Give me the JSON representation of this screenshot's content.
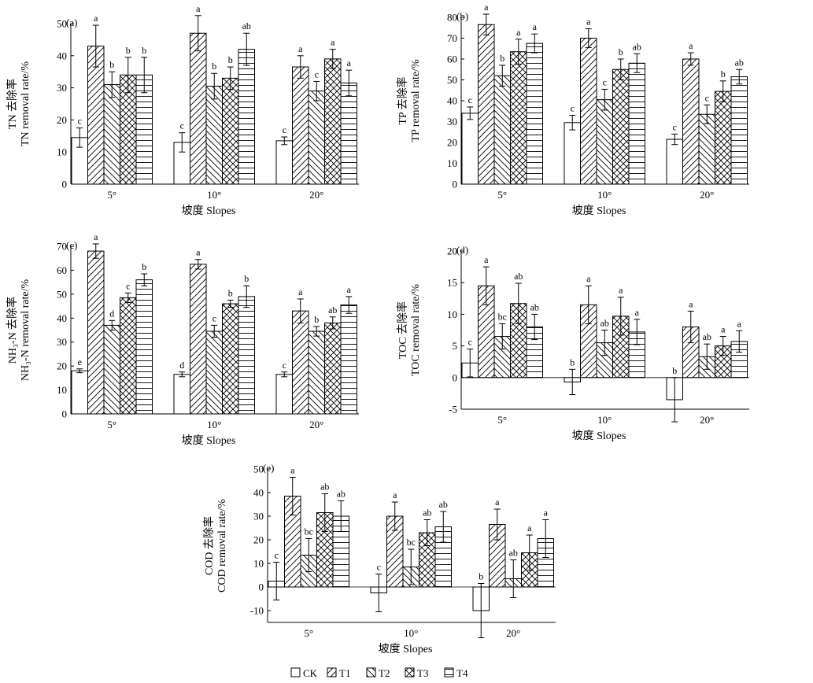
{
  "legend": [
    {
      "key": "CK",
      "pattern": "none"
    },
    {
      "key": "T1",
      "pattern": "forward"
    },
    {
      "key": "T2",
      "pattern": "back"
    },
    {
      "key": "T3",
      "pattern": "cross"
    },
    {
      "key": "T4",
      "pattern": "horizontal"
    }
  ],
  "chart_data": [
    {
      "type": "bar",
      "tag": "(a)",
      "ylabel_cn": "TN 去除率",
      "ylabel_en": "TN removal rate/%",
      "xlabel": "坡度 Slopes",
      "categories": [
        "5°",
        "10°",
        "20°"
      ],
      "ylim": [
        0,
        50
      ],
      "yticks": [
        0,
        10,
        20,
        30,
        40,
        50
      ],
      "series": [
        {
          "name": "CK",
          "values": [
            14.5,
            13,
            13.5
          ],
          "err": [
            3,
            3,
            1.2
          ],
          "letters": [
            "c",
            "c",
            "c"
          ]
        },
        {
          "name": "T1",
          "values": [
            43,
            47,
            36.5
          ],
          "err": [
            6.5,
            5.5,
            3.5
          ],
          "letters": [
            "a",
            "a",
            "a"
          ]
        },
        {
          "name": "T2",
          "values": [
            31,
            30.5,
            29
          ],
          "err": [
            4,
            4,
            3
          ],
          "letters": [
            "b",
            "b",
            "c"
          ]
        },
        {
          "name": "T3",
          "values": [
            34,
            33,
            39
          ],
          "err": [
            5.5,
            3.5,
            3
          ],
          "letters": [
            "b",
            "b",
            "a"
          ]
        },
        {
          "name": "T4",
          "values": [
            34,
            42,
            31.5
          ],
          "err": [
            5.5,
            5,
            4
          ],
          "letters": [
            "b",
            "ab",
            "a"
          ]
        }
      ]
    },
    {
      "type": "bar",
      "tag": "(b)",
      "ylabel_cn": "TP 去除率",
      "ylabel_en": "TP removal rate/%",
      "xlabel": "坡度 Slopes",
      "categories": [
        "5°",
        "10°",
        "20°"
      ],
      "ylim": [
        0,
        80
      ],
      "yticks": [
        0,
        10,
        20,
        30,
        40,
        50,
        60,
        70,
        80
      ],
      "series": [
        {
          "name": "CK",
          "values": [
            34,
            29.5,
            21.5
          ],
          "err": [
            3,
            3.5,
            2.5
          ],
          "letters": [
            "c",
            "c",
            "c"
          ]
        },
        {
          "name": "T1",
          "values": [
            76.5,
            70,
            60
          ],
          "err": [
            5,
            4.5,
            3
          ],
          "letters": [
            "a",
            "a",
            "a"
          ]
        },
        {
          "name": "T2",
          "values": [
            52,
            40.5,
            33.5
          ],
          "err": [
            5,
            5,
            4.5
          ],
          "letters": [
            "b",
            "c",
            "c"
          ]
        },
        {
          "name": "T3",
          "values": [
            63.5,
            55,
            44.5
          ],
          "err": [
            6,
            5,
            5
          ],
          "letters": [
            "a",
            "b",
            "b"
          ]
        },
        {
          "name": "T4",
          "values": [
            67.5,
            58,
            51.5
          ],
          "err": [
            4.5,
            4.5,
            3.5
          ],
          "letters": [
            "a",
            "ab",
            "ab"
          ]
        }
      ]
    },
    {
      "type": "bar",
      "tag": "(c)",
      "ylabel_cn": "NH₃-N 去除率",
      "ylabel_en": "NH₃-N removal rate/%",
      "xlabel": "坡度 Slopes",
      "categories": [
        "5°",
        "10°",
        "20°"
      ],
      "ylim": [
        0,
        70
      ],
      "yticks": [
        0,
        10,
        20,
        30,
        40,
        50,
        60,
        70
      ],
      "series": [
        {
          "name": "CK",
          "values": [
            18,
            16.5,
            16.5
          ],
          "err": [
            0.8,
            1,
            1
          ],
          "letters": [
            "e",
            "d",
            "c"
          ]
        },
        {
          "name": "T1",
          "values": [
            68,
            62.5,
            43
          ],
          "err": [
            3,
            2,
            5
          ],
          "letters": [
            "a",
            "a",
            "a"
          ]
        },
        {
          "name": "T2",
          "values": [
            37,
            34.5,
            34.5
          ],
          "err": [
            2,
            2.5,
            2
          ],
          "letters": [
            "d",
            "c",
            "b"
          ]
        },
        {
          "name": "T3",
          "values": [
            48.5,
            46,
            38
          ],
          "err": [
            2,
            1.5,
            2.5
          ],
          "letters": [
            "c",
            "b",
            "ab"
          ]
        },
        {
          "name": "T4",
          "values": [
            56,
            49,
            45.5
          ],
          "err": [
            2.5,
            4.5,
            3.5
          ],
          "letters": [
            "b",
            "b",
            "a"
          ]
        }
      ]
    },
    {
      "type": "bar",
      "tag": "(d)",
      "ylabel_cn": "TOC 去除率",
      "ylabel_en": "TOC removal rate/%",
      "xlabel": "坡度 Slopes",
      "categories": [
        "5°",
        "10°",
        "20°"
      ],
      "ylim": [
        -5,
        20
      ],
      "yticks": [
        -5,
        0,
        5,
        10,
        15,
        20
      ],
      "series": [
        {
          "name": "CK",
          "values": [
            2.3,
            -0.7,
            -3.5
          ],
          "err": [
            2.2,
            2,
            3.5
          ],
          "letters": [
            "c",
            "b",
            "b"
          ]
        },
        {
          "name": "T1",
          "values": [
            14.5,
            11.5,
            8
          ],
          "err": [
            3,
            3,
            2.5
          ],
          "letters": [
            "a",
            "a",
            "a"
          ]
        },
        {
          "name": "T2",
          "values": [
            6.5,
            5.5,
            3.3
          ],
          "err": [
            2,
            2,
            2
          ],
          "letters": [
            "bc",
            "ab",
            "ab"
          ]
        },
        {
          "name": "T3",
          "values": [
            11.7,
            9.7,
            5
          ],
          "err": [
            3.2,
            3,
            1.5
          ],
          "letters": [
            "ab",
            "a",
            "a"
          ]
        },
        {
          "name": "T4",
          "values": [
            8,
            7.2,
            5.7
          ],
          "err": [
            2,
            2,
            1.7
          ],
          "letters": [
            "ab",
            "a",
            "a"
          ]
        }
      ]
    },
    {
      "type": "bar",
      "tag": "(e)",
      "ylabel_cn": "COD 去除率",
      "ylabel_en": "COD removal rate/%",
      "xlabel": "坡度 Slopes",
      "categories": [
        "5°",
        "10°",
        "20°"
      ],
      "ylim": [
        -15,
        50
      ],
      "yticks": [
        -10,
        0,
        10,
        20,
        30,
        40,
        50
      ],
      "series": [
        {
          "name": "CK",
          "values": [
            2.5,
            -2.5,
            -10
          ],
          "err": [
            8,
            8,
            11.5
          ],
          "letters": [
            "c",
            "c",
            "b"
          ]
        },
        {
          "name": "T1",
          "values": [
            38.5,
            30,
            26.5
          ],
          "err": [
            8,
            6,
            6.5
          ],
          "letters": [
            "a",
            "a",
            "a"
          ]
        },
        {
          "name": "T2",
          "values": [
            13.5,
            8.5,
            3.5
          ],
          "err": [
            7,
            7.5,
            8
          ],
          "letters": [
            "bc",
            "bc",
            "ab"
          ]
        },
        {
          "name": "T3",
          "values": [
            31.5,
            23,
            14.5
          ],
          "err": [
            8,
            5.5,
            7.5
          ],
          "letters": [
            "ab",
            "ab",
            "a"
          ]
        },
        {
          "name": "T4",
          "values": [
            30,
            25.5,
            20.5
          ],
          "err": [
            6.5,
            6.5,
            8
          ],
          "letters": [
            "ab",
            "ab",
            "a"
          ]
        }
      ]
    }
  ]
}
